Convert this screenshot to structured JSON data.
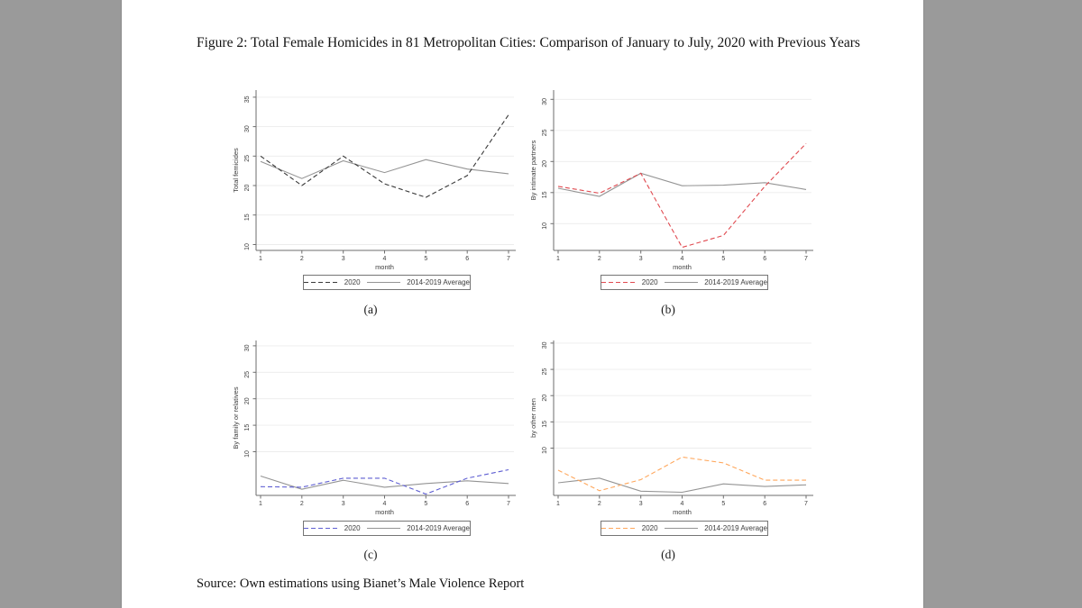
{
  "page": {
    "title": "Figure 2: Total Female Homicides in 81 Metropolitan Cities: Comparison of January to July, 2020 with Previous Years",
    "source": "Source: Own estimations using Bianet’s Male Violence Report"
  },
  "legend": {
    "s2020": "2020",
    "avg": "2014-2019 Average"
  },
  "chart_data": [
    {
      "id": "a",
      "type": "line",
      "caption": "(a)",
      "ylabel": "Total femicides",
      "xlabel": "month",
      "x": [
        1,
        2,
        3,
        4,
        5,
        6,
        7
      ],
      "y_ticks": [
        10,
        15,
        20,
        25,
        30,
        35
      ],
      "ylim": [
        9.0,
        36.2
      ],
      "grid": true,
      "legend_position": "bottom",
      "series": [
        {
          "name": "2020",
          "style": "dashed",
          "color": "#3a3a3a",
          "values": [
            25.0,
            20.0,
            25.0,
            20.3,
            18.0,
            21.7,
            32.0
          ]
        },
        {
          "name": "2014-2019 Average",
          "style": "solid",
          "color": "#949494",
          "values": [
            24.1,
            21.2,
            24.2,
            22.2,
            24.4,
            22.8,
            22.0
          ]
        }
      ]
    },
    {
      "id": "b",
      "type": "line",
      "caption": "(b)",
      "ylabel": "By intimate partners",
      "xlabel": "month",
      "x": [
        1,
        2,
        3,
        4,
        5,
        6,
        7
      ],
      "y_ticks": [
        10,
        15,
        20,
        25,
        30
      ],
      "ylim": [
        5.7,
        31.5
      ],
      "grid": true,
      "legend_position": "bottom",
      "series": [
        {
          "name": "2020",
          "style": "dashed",
          "color": "#e04a50",
          "values": [
            16.0,
            14.9,
            18.1,
            6.2,
            8.1,
            16.0,
            22.9
          ]
        },
        {
          "name": "2014-2019 Average",
          "style": "solid",
          "color": "#949494",
          "values": [
            15.7,
            14.4,
            18.1,
            16.1,
            16.2,
            16.6,
            15.5
          ]
        }
      ]
    },
    {
      "id": "c",
      "type": "line",
      "caption": "(c)",
      "ylabel": "By family or relatives",
      "xlabel": "month",
      "x": [
        1,
        2,
        3,
        4,
        5,
        6,
        7
      ],
      "y_ticks": [
        10,
        15,
        20,
        25,
        30
      ],
      "ylim": [
        1.75,
        31.0
      ],
      "grid": true,
      "legend_position": "bottom",
      "series": [
        {
          "name": "2020",
          "style": "dashed",
          "color": "#5e5ed2",
          "values": [
            3.4,
            3.3,
            5.0,
            5.0,
            2.0,
            5.0,
            6.6
          ]
        },
        {
          "name": "2014-2019 Average",
          "style": "solid",
          "color": "#949494",
          "values": [
            5.4,
            2.9,
            4.6,
            3.3,
            4.0,
            4.5,
            4.0
          ]
        }
      ]
    },
    {
      "id": "d",
      "type": "line",
      "caption": "(d)",
      "ylabel": "by other men",
      "xlabel": "month",
      "x": [
        1,
        2,
        3,
        4,
        5,
        6,
        7
      ],
      "y_ticks": [
        10,
        15,
        20,
        25,
        30
      ],
      "ylim": [
        1.0,
        30.5
      ],
      "grid": true,
      "legend_position": "bottom",
      "series": [
        {
          "name": "2020",
          "style": "dashed",
          "color": "#ffa75c",
          "values": [
            5.8,
            1.9,
            4.0,
            8.3,
            7.2,
            3.9,
            3.9
          ]
        },
        {
          "name": "2014-2019 Average",
          "style": "solid",
          "color": "#949494",
          "values": [
            3.4,
            4.3,
            1.8,
            1.6,
            3.2,
            2.7,
            3.0
          ]
        }
      ]
    }
  ]
}
